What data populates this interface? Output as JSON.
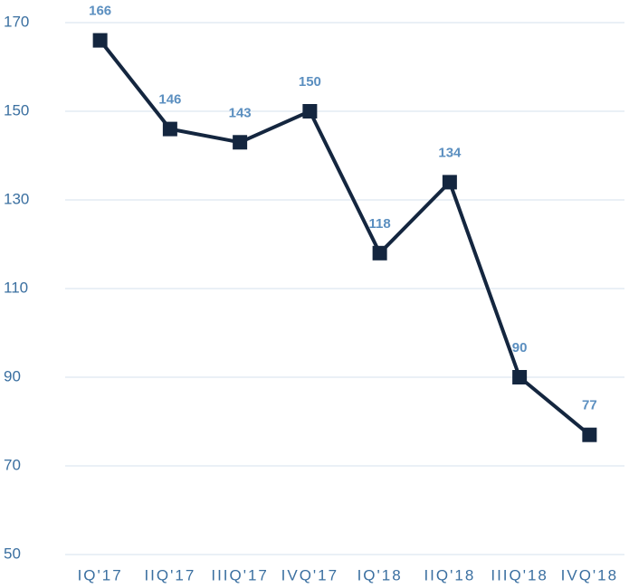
{
  "chart_data": {
    "type": "line",
    "categories": [
      "IQ'17",
      "IIQ'17",
      "IIIQ'17",
      "IVQ'17",
      "IQ'18",
      "IIQ'18",
      "IIIQ'18",
      "IVQ'18"
    ],
    "series": [
      {
        "name": null,
        "color": "#14263f",
        "values": [
          166,
          146,
          143,
          150,
          118,
          134,
          90,
          77
        ]
      }
    ],
    "ylim": [
      50,
      170
    ],
    "yticks": [
      50,
      70,
      90,
      110,
      130,
      150,
      170
    ],
    "grid": true
  }
}
